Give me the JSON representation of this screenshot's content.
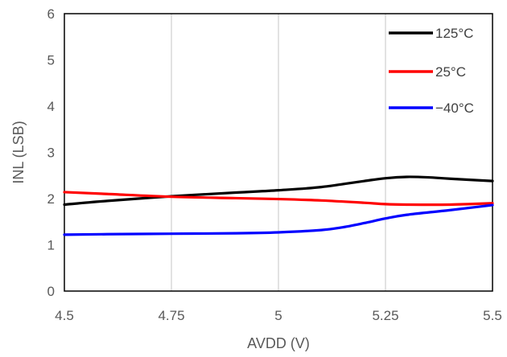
{
  "chart_data": {
    "type": "line",
    "xlabel": "AVDD (V)",
    "ylabel": "INL (LSB)",
    "xlim": [
      4.5,
      5.5
    ],
    "ylim": [
      0,
      6
    ],
    "x_ticks": [
      4.5,
      4.75,
      5,
      5.25,
      5.5
    ],
    "x_tick_labels": [
      "4.5",
      "4.75",
      "5",
      "5.25",
      "5.5"
    ],
    "y_ticks": [
      0,
      1,
      2,
      3,
      4,
      5,
      6
    ],
    "y_tick_labels": [
      "0",
      "1",
      "2",
      "3",
      "4",
      "5",
      "6"
    ],
    "grid": "vertical",
    "legend_position": "top-right",
    "series": [
      {
        "name": "125°C",
        "color": "#000000",
        "x": [
          4.5,
          4.6,
          4.75,
          4.9,
          5.0,
          5.1,
          5.2,
          5.25,
          5.3,
          5.35,
          5.4,
          5.5
        ],
        "y": [
          1.87,
          1.95,
          2.05,
          2.13,
          2.18,
          2.25,
          2.38,
          2.44,
          2.47,
          2.46,
          2.43,
          2.38
        ]
      },
      {
        "name": "25°C",
        "color": "#ff0000",
        "x": [
          4.5,
          4.6,
          4.75,
          4.9,
          5.0,
          5.1,
          5.2,
          5.25,
          5.3,
          5.4,
          5.5
        ],
        "y": [
          2.14,
          2.1,
          2.04,
          2.01,
          1.99,
          1.96,
          1.91,
          1.88,
          1.87,
          1.87,
          1.9
        ]
      },
      {
        "name": "−40°C",
        "color": "#0000ff",
        "x": [
          4.5,
          4.6,
          4.75,
          4.9,
          5.0,
          5.1,
          5.15,
          5.2,
          5.25,
          5.3,
          5.4,
          5.5
        ],
        "y": [
          1.22,
          1.23,
          1.24,
          1.25,
          1.27,
          1.32,
          1.38,
          1.47,
          1.57,
          1.65,
          1.75,
          1.86
        ]
      }
    ]
  }
}
